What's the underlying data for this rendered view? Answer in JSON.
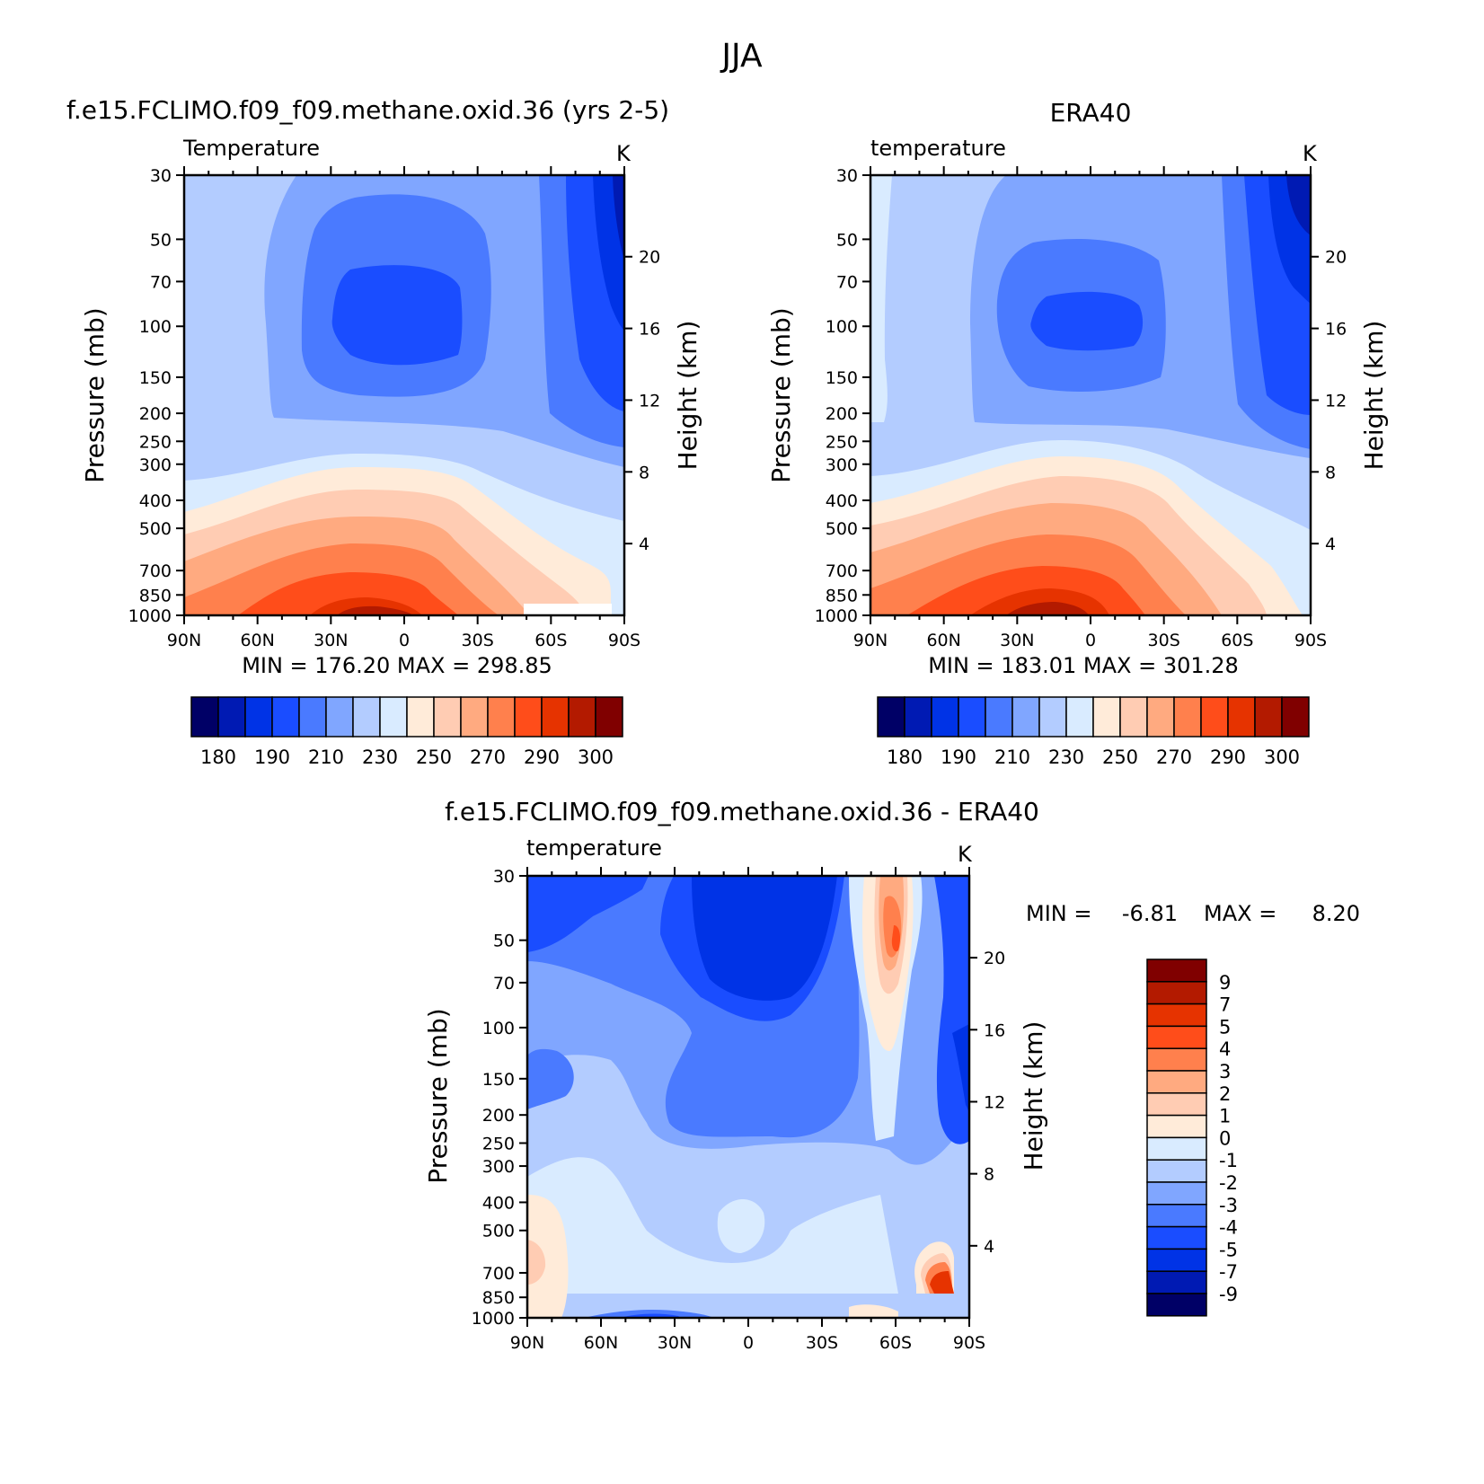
{
  "page_title": "JJA",
  "chart_data": [
    {
      "type": "heatmap",
      "title": "f.e15.FCLIMO.f09_f09.methane.oxid.36 (yrs 2-5)",
      "variable": "Temperature",
      "units": "K",
      "xlabel": "",
      "ylabel": "Pressure (mb)",
      "y2label": "Height (km)",
      "xticks": [
        "90N",
        "60N",
        "30N",
        "0",
        "30S",
        "60S",
        "90S"
      ],
      "yticks": [
        30,
        50,
        70,
        100,
        150,
        200,
        250,
        300,
        400,
        500,
        700,
        850,
        1000
      ],
      "y2ticks": [
        20,
        16,
        12,
        8,
        4
      ],
      "ylim": [
        1000,
        30
      ],
      "stats": "MIN = 176.20   MAX = 298.85",
      "colorbar": {
        "labels": [
          "180",
          "190",
          "210",
          "230",
          "250",
          "270",
          "290",
          "300"
        ],
        "levels": [
          175,
          180,
          185,
          190,
          200,
          210,
          220,
          230,
          240,
          250,
          260,
          270,
          280,
          290,
          295,
          300
        ],
        "colors": [
          "#000066",
          "#001ab3",
          "#0033e6",
          "#1a4dff",
          "#4a7aff",
          "#80a6ff",
          "#b3ccff",
          "#d9ebff",
          "#ffebd9",
          "#ffccb3",
          "#ffaa80",
          "#ff804d",
          "#ff4d1a",
          "#e63300",
          "#b31a00",
          "#800000"
        ]
      }
    },
    {
      "type": "heatmap",
      "title": "ERA40",
      "variable": "temperature",
      "units": "K",
      "xlabel": "",
      "ylabel": "Pressure (mb)",
      "y2label": "Height (km)",
      "xticks": [
        "90N",
        "60N",
        "30N",
        "0",
        "30S",
        "60S",
        "90S"
      ],
      "yticks": [
        30,
        50,
        70,
        100,
        150,
        200,
        250,
        300,
        400,
        500,
        700,
        850,
        1000
      ],
      "y2ticks": [
        20,
        16,
        12,
        8,
        4
      ],
      "ylim": [
        1000,
        30
      ],
      "stats": "MIN = 183.01   MAX = 301.28",
      "colorbar": {
        "labels": [
          "180",
          "190",
          "210",
          "230",
          "250",
          "270",
          "290",
          "300"
        ],
        "levels": [
          175,
          180,
          185,
          190,
          200,
          210,
          220,
          230,
          240,
          250,
          260,
          270,
          280,
          290,
          295,
          300
        ],
        "colors": [
          "#000066",
          "#001ab3",
          "#0033e6",
          "#1a4dff",
          "#4a7aff",
          "#80a6ff",
          "#b3ccff",
          "#d9ebff",
          "#ffebd9",
          "#ffccb3",
          "#ffaa80",
          "#ff804d",
          "#ff4d1a",
          "#e63300",
          "#b31a00",
          "#800000"
        ]
      }
    },
    {
      "type": "heatmap",
      "title": "f.e15.FCLIMO.f09_f09.methane.oxid.36 - ERA40",
      "variable": "temperature",
      "units": "K",
      "xlabel": "",
      "ylabel": "Pressure (mb)",
      "y2label": "Height (km)",
      "xticks": [
        "90N",
        "60N",
        "30N",
        "0",
        "30S",
        "60S",
        "90S"
      ],
      "yticks": [
        30,
        50,
        70,
        100,
        150,
        200,
        250,
        300,
        400,
        500,
        700,
        850,
        1000
      ],
      "y2ticks": [
        20,
        16,
        12,
        8,
        4
      ],
      "ylim": [
        1000,
        30
      ],
      "stats_min_label": "MIN =",
      "stats_min": "-6.81",
      "stats_max_label": "MAX =",
      "stats_max": "8.20",
      "colorbar": {
        "labels": [
          "9",
          "7",
          "5",
          "4",
          "3",
          "2",
          "1",
          "0",
          "-1",
          "-2",
          "-3",
          "-4",
          "-5",
          "-7",
          "-9"
        ],
        "levels": [
          9,
          7,
          5,
          4,
          3,
          2,
          1,
          0,
          -1,
          -2,
          -3,
          -4,
          -5,
          -7,
          -9
        ],
        "colors": [
          "#800000",
          "#b31a00",
          "#e63300",
          "#ff4d1a",
          "#ff804d",
          "#ffaa80",
          "#ffccb3",
          "#ffebd9",
          "#d9ebff",
          "#b3ccff",
          "#80a6ff",
          "#4a7aff",
          "#1a4dff",
          "#0033e6",
          "#001ab3",
          "#000066"
        ]
      }
    }
  ]
}
